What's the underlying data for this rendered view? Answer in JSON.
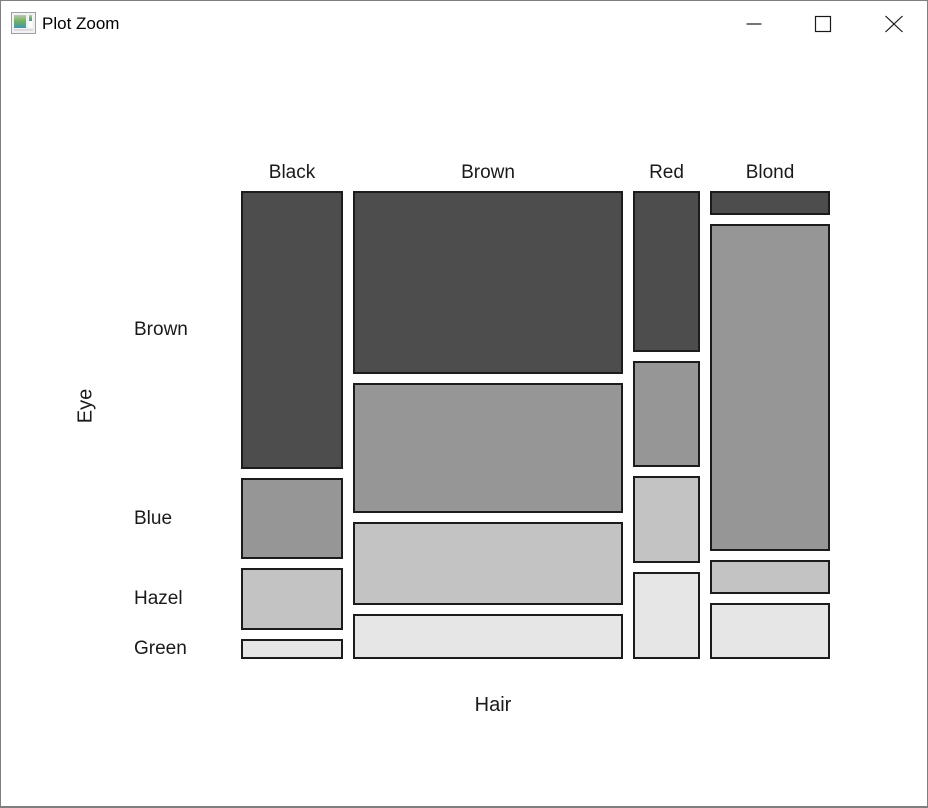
{
  "window": {
    "title": "Plot Zoom",
    "icon": "plot-thumbnail-icon",
    "controls": [
      {
        "name": "minimize",
        "glyph": "—"
      },
      {
        "name": "maximize",
        "glyph": "□"
      },
      {
        "name": "close",
        "glyph": "✕"
      }
    ]
  },
  "chart_data": {
    "type": "mosaic",
    "title": "",
    "xlabel": "Hair",
    "ylabel": "Eye",
    "x_categories": [
      "Black",
      "Brown",
      "Red",
      "Blond"
    ],
    "y_categories": [
      "Brown",
      "Blue",
      "Hazel",
      "Green"
    ],
    "columns": [
      {
        "hair": "Black",
        "values": [
          68,
          20,
          15,
          5
        ]
      },
      {
        "hair": "Brown",
        "values": [
          119,
          84,
          54,
          29
        ]
      },
      {
        "hair": "Red",
        "values": [
          26,
          17,
          14,
          14
        ]
      },
      {
        "hair": "Blond",
        "values": [
          7,
          94,
          10,
          16
        ]
      }
    ],
    "grand_total": 592,
    "row_colors": [
      "#4D4D4D",
      "#969696",
      "#C3C3C3",
      "#E6E6E6"
    ],
    "tile_border_color": "#1C1C1C",
    "legend": "none",
    "note": "Column widths proportional to hair-color totals; tile heights proportional to eye-color share within each column"
  }
}
